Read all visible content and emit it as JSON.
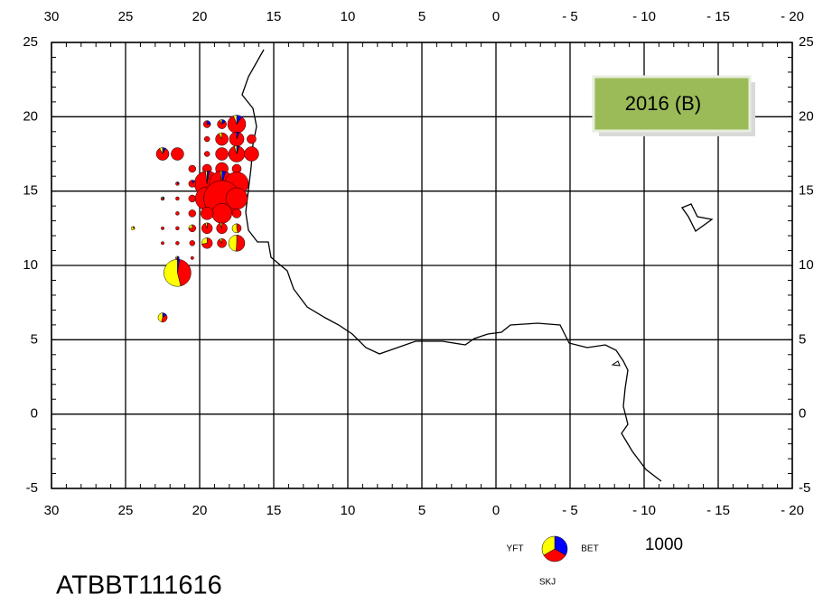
{
  "map": {
    "title": "2016 (B)",
    "code": "ATBBT111616",
    "xlim": [
      30,
      -20
    ],
    "ylim": [
      -5,
      25
    ],
    "xticks": [
      30,
      25,
      20,
      15,
      10,
      5,
      0,
      {
        "value": -5,
        "label": "- 5"
      },
      {
        "value": -10,
        "label": "- 10"
      },
      {
        "value": -15,
        "label": "- 15"
      },
      {
        "value": -20,
        "label": "- 20"
      }
    ],
    "yticks": [
      -5,
      0,
      5,
      10,
      15,
      20,
      25
    ],
    "species": [
      {
        "name": "YFT",
        "color": "#ffff00"
      },
      {
        "name": "SKJ",
        "color": "#ff0000"
      },
      {
        "name": "BET",
        "color": "#0000ff"
      }
    ],
    "legend_value": 1000,
    "catches": [
      [
        17.5,
        19.5,
        30,
        430,
        50
      ],
      [
        18.5,
        19.5,
        10,
        100,
        20
      ],
      [
        19.5,
        19.5,
        0,
        60,
        20
      ],
      [
        18.5,
        18.5,
        20,
        230,
        0
      ],
      [
        17.5,
        18.5,
        0,
        310,
        20
      ],
      [
        16.5,
        18.5,
        0,
        130,
        0
      ],
      [
        19.5,
        18.5,
        0,
        45,
        0
      ],
      [
        22.5,
        17.5,
        20,
        210,
        20
      ],
      [
        21.5,
        17.5,
        0,
        250,
        0
      ],
      [
        18.5,
        17.5,
        0,
        250,
        0
      ],
      [
        17.5,
        17.5,
        20,
        370,
        20
      ],
      [
        16.5,
        17.5,
        0,
        330,
        0
      ],
      [
        19.5,
        17.5,
        0,
        45,
        0
      ],
      [
        18.5,
        16.5,
        0,
        250,
        0
      ],
      [
        19.5,
        16.5,
        0,
        130,
        0
      ],
      [
        17.5,
        16.5,
        0,
        130,
        0
      ],
      [
        20.5,
        16.5,
        0,
        80,
        0
      ],
      [
        19.5,
        15.5,
        20,
        950,
        30
      ],
      [
        18.5,
        15.5,
        20,
        930,
        50
      ],
      [
        17.5,
        15.5,
        0,
        860,
        0
      ],
      [
        20.5,
        15.5,
        0,
        70,
        10
      ],
      [
        19.5,
        14.5,
        0,
        860,
        0
      ],
      [
        18.5,
        14.5,
        0,
        2040,
        0
      ],
      [
        17.5,
        14.5,
        0,
        730,
        0
      ],
      [
        20.5,
        14.5,
        0,
        80,
        0
      ],
      [
        18.5,
        13.5,
        0,
        620,
        0
      ],
      [
        19.5,
        13.5,
        0,
        250,
        0
      ],
      [
        17.5,
        13.5,
        0,
        130,
        0
      ],
      [
        20.5,
        13.5,
        0,
        80,
        0
      ],
      [
        19.5,
        12.5,
        10,
        170,
        0
      ],
      [
        18.5,
        12.5,
        10,
        170,
        0
      ],
      [
        17.5,
        12.5,
        70,
        60,
        0
      ],
      [
        20.5,
        12.5,
        20,
        60,
        0
      ],
      [
        19.5,
        11.5,
        50,
        130,
        0
      ],
      [
        18.5,
        11.5,
        10,
        120,
        0
      ],
      [
        17.5,
        11.5,
        200,
        210,
        0
      ],
      [
        20.5,
        11.5,
        0,
        45,
        0
      ],
      [
        21.5,
        9.5,
        620,
        500,
        30
      ],
      [
        22.5,
        6.5,
        60,
        50,
        20
      ],
      [
        21.5,
        15.5,
        0,
        15,
        5
      ],
      [
        21.5,
        14.5,
        0,
        20,
        0
      ],
      [
        22.5,
        14.5,
        5,
        10,
        5
      ],
      [
        21.5,
        13.5,
        0,
        20,
        0
      ],
      [
        22.5,
        12.5,
        0,
        15,
        0
      ],
      [
        24.5,
        12.5,
        15,
        5,
        0
      ],
      [
        21.5,
        11.5,
        0,
        20,
        0
      ],
      [
        22.5,
        11.5,
        0,
        15,
        0
      ],
      [
        21.5,
        10.5,
        5,
        5,
        10
      ],
      [
        20.5,
        10.5,
        0,
        15,
        0
      ],
      [
        21.5,
        12.5,
        0,
        20,
        0
      ]
    ]
  }
}
